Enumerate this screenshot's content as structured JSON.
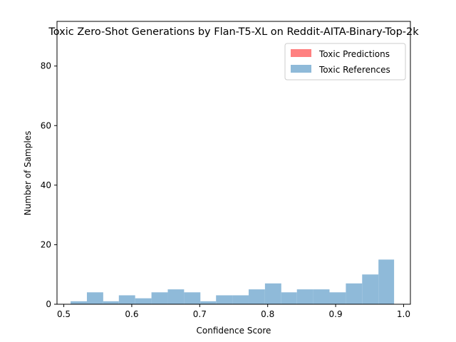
{
  "chart_data": {
    "type": "histogram",
    "title": "Toxic Zero-Shot Generations by Flan-T5-XL on Reddit-AITA-Binary-Top-2k",
    "xlabel": "Confidence Score",
    "ylabel": "Number of Samples",
    "xlim": [
      0.49,
      1.01
    ],
    "ylim": [
      0,
      95
    ],
    "xticks": [
      "0.5",
      "0.6",
      "0.7",
      "0.8",
      "0.9",
      "1.0"
    ],
    "yticks": [
      "0",
      "20",
      "40",
      "60",
      "80"
    ],
    "grid": false,
    "legend_position": "top-right",
    "series": [
      {
        "name": "Toxic Predictions",
        "color": "#ff8080",
        "bins": []
      },
      {
        "name": "Toxic References",
        "color": "#8fbad9",
        "bins": [
          {
            "x0": 0.51,
            "x1": 0.534,
            "count": 1
          },
          {
            "x0": 0.534,
            "x1": 0.558,
            "count": 4
          },
          {
            "x0": 0.558,
            "x1": 0.581,
            "count": 1
          },
          {
            "x0": 0.581,
            "x1": 0.605,
            "count": 3
          },
          {
            "x0": 0.605,
            "x1": 0.629,
            "count": 2
          },
          {
            "x0": 0.629,
            "x1": 0.653,
            "count": 4
          },
          {
            "x0": 0.653,
            "x1": 0.677,
            "count": 5
          },
          {
            "x0": 0.677,
            "x1": 0.701,
            "count": 4
          },
          {
            "x0": 0.701,
            "x1": 0.724,
            "count": 1
          },
          {
            "x0": 0.724,
            "x1": 0.748,
            "count": 3
          },
          {
            "x0": 0.748,
            "x1": 0.772,
            "count": 3
          },
          {
            "x0": 0.772,
            "x1": 0.796,
            "count": 5
          },
          {
            "x0": 0.796,
            "x1": 0.82,
            "count": 7
          },
          {
            "x0": 0.82,
            "x1": 0.843,
            "count": 4
          },
          {
            "x0": 0.843,
            "x1": 0.867,
            "count": 5
          },
          {
            "x0": 0.867,
            "x1": 0.891,
            "count": 5
          },
          {
            "x0": 0.891,
            "x1": 0.915,
            "count": 4
          },
          {
            "x0": 0.915,
            "x1": 0.939,
            "count": 7
          },
          {
            "x0": 0.939,
            "x1": 0.963,
            "count": 10
          },
          {
            "x0": 0.963,
            "x1": 0.986,
            "count": 15
          }
        ]
      }
    ]
  }
}
